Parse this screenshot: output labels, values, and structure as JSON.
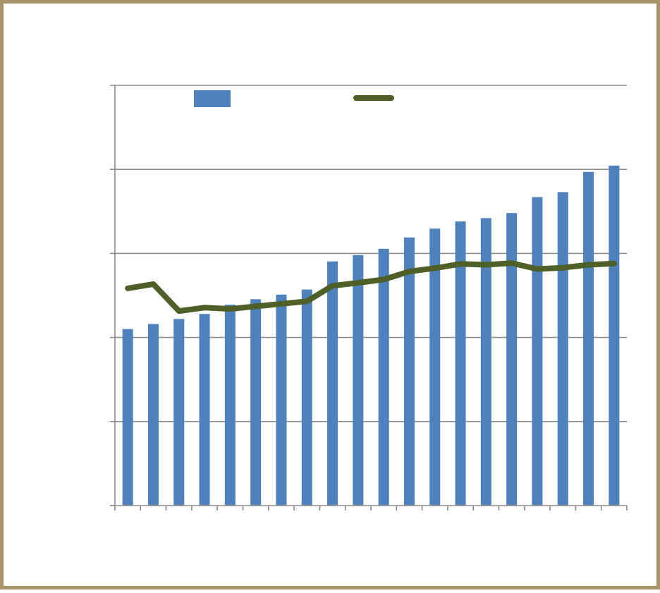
{
  "chart_data": {
    "type": "bar",
    "title": "",
    "xlabel": "",
    "ylabel": "",
    "ylim": [
      0,
      100
    ],
    "grid": true,
    "legend": "top",
    "categories": [
      "",
      "",
      "",
      "",
      "",
      "",
      "",
      "",
      "",
      "",
      "",
      "",
      "",
      "",
      "",
      "",
      "",
      "",
      "",
      ""
    ],
    "series": [
      {
        "kind": "bar",
        "color": "#4f81bd",
        "values": [
          42,
          43.2,
          44.4,
          45.6,
          47.8,
          49.1,
          50.2,
          51.4,
          58.1,
          59.6,
          61.1,
          63.8,
          65.9,
          67.6,
          68.4,
          69.6,
          73.4,
          74.6,
          79.4,
          80.9
        ]
      },
      {
        "kind": "line",
        "color": "#4f5f28",
        "values": [
          51.7,
          52.7,
          46.3,
          47.1,
          46.8,
          47.4,
          48,
          48.6,
          52.3,
          53,
          53.8,
          55.7,
          56.5,
          57.5,
          57.3,
          57.7,
          56.3,
          56.6,
          57.3,
          57.6
        ]
      }
    ]
  }
}
